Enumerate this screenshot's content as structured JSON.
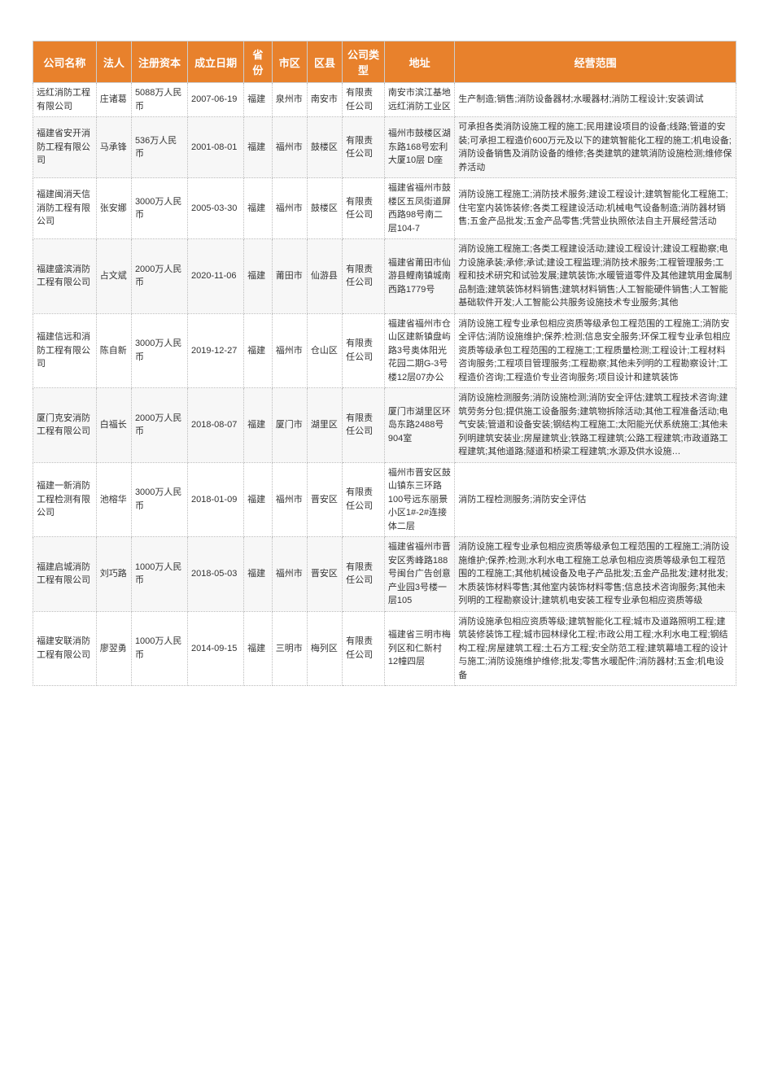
{
  "table": {
    "header_bg": "#e8812c",
    "header_color": "#ffffff",
    "row_even_bg": "#f7f7f7",
    "row_odd_bg": "#ffffff",
    "border_color": "#cccccc",
    "font_family": "Microsoft YaHei",
    "header_fontsize": 13,
    "cell_fontsize": 11,
    "columns": [
      {
        "key": "company_name",
        "label": "公司名称"
      },
      {
        "key": "legal_person",
        "label": "法人"
      },
      {
        "key": "reg_capital",
        "label": "注册资本"
      },
      {
        "key": "est_date",
        "label": "成立日期"
      },
      {
        "key": "province",
        "label": "省份"
      },
      {
        "key": "city",
        "label": "市区"
      },
      {
        "key": "district",
        "label": "区县"
      },
      {
        "key": "company_type",
        "label": "公司类型"
      },
      {
        "key": "address",
        "label": "地址"
      },
      {
        "key": "scope",
        "label": "经营范围"
      }
    ],
    "rows": [
      {
        "company_name": "远红消防工程有限公司",
        "legal_person": "庄诸葛",
        "reg_capital": "5088万人民币",
        "est_date": "2007-06-19",
        "province": "福建",
        "city": "泉州市",
        "district": "南安市",
        "company_type": "有限责任公司",
        "address": "南安市滨江基地远红消防工业区",
        "scope": "生产制造;销售;消防设备器材;水暖器材;消防工程设计;安装调试"
      },
      {
        "company_name": "福建省安开消防工程有限公司",
        "legal_person": "马承锋",
        "reg_capital": "536万人民币",
        "est_date": "2001-08-01",
        "province": "福建",
        "city": "福州市",
        "district": "鼓楼区",
        "company_type": "有限责任公司",
        "address": "福州市鼓楼区湖东路168号宏利大厦10层 D座",
        "scope": "可承担各类消防设施工程的施工;民用建设项目的设备;线路;管道的安装;可承担工程造价600万元及以下的建筑智能化工程的施工;机电设备;消防设备销售及消防设备的维修;各类建筑的建筑消防设施检测;维修保养活动"
      },
      {
        "company_name": "福建闽消天信消防工程有限公司",
        "legal_person": "张安娜",
        "reg_capital": "3000万人民币",
        "est_date": "2005-03-30",
        "province": "福建",
        "city": "福州市",
        "district": "鼓楼区",
        "company_type": "有限责任公司",
        "address": "福建省福州市鼓楼区五凤街道屏西路98号南二层104-7",
        "scope": "消防设施工程施工;消防技术服务;建设工程设计;建筑智能化工程施工;住宅室内装饰装修;各类工程建设活动;机械电气设备制造;消防器材销售;五金产品批发;五金产品零售;凭营业执照依法自主开展经营活动"
      },
      {
        "company_name": "福建盛滨消防工程有限公司",
        "legal_person": "占文斌",
        "reg_capital": "2000万人民币",
        "est_date": "2020-11-06",
        "province": "福建",
        "city": "莆田市",
        "district": "仙游县",
        "company_type": "有限责任公司",
        "address": "福建省莆田市仙游县鲤南镇城南西路1779号",
        "scope": "消防设施工程施工;各类工程建设活动;建设工程设计;建设工程勘察;电力设施承装;承修;承试;建设工程监理;消防技术服务;工程管理服务;工程和技术研究和试验发展;建筑装饰;水暖管道零件及其他建筑用金属制品制造;建筑装饰材料销售;建筑材料销售;人工智能硬件销售;人工智能基础软件开发;人工智能公共服务设施技术专业服务;其他"
      },
      {
        "company_name": "福建信远和消防工程有限公司",
        "legal_person": "陈自新",
        "reg_capital": "3000万人民币",
        "est_date": "2019-12-27",
        "province": "福建",
        "city": "福州市",
        "district": "仓山区",
        "company_type": "有限责任公司",
        "address": "福建省福州市仓山区建新镇盘屿路3号奥体阳光花园二期G-3号楼12层07办公",
        "scope": "消防设施工程专业承包相应资质等级承包工程范围的工程施工;消防安全评估;消防设施维护;保养;检测;信息安全服务;环保工程专业承包相应资质等级承包工程范围的工程施工;工程质量检测;工程设计;工程材料咨询服务;工程项目管理服务;工程勘察;其他未列明的工程勘察设计;工程造价咨询;工程造价专业咨询服务;项目设计和建筑装饰"
      },
      {
        "company_name": "厦门克安消防工程有限公司",
        "legal_person": "白福长",
        "reg_capital": "2000万人民币",
        "est_date": "2018-08-07",
        "province": "福建",
        "city": "厦门市",
        "district": "湖里区",
        "company_type": "有限责任公司",
        "address": "厦门市湖里区环岛东路2488号904室",
        "scope": "消防设施检测服务;消防设施检测;消防安全评估;建筑工程技术咨询;建筑劳务分包;提供施工设备服务;建筑物拆除活动;其他工程准备活动;电气安装;管道和设备安装;钢结构工程施工;太阳能光伏系统施工;其他未列明建筑安装业;房屋建筑业;铁路工程建筑;公路工程建筑;市政道路工程建筑;其他道路;隧道和桥梁工程建筑;水源及供水设施…"
      },
      {
        "company_name": "福建一新消防工程检测有限公司",
        "legal_person": "池榕华",
        "reg_capital": "3000万人民币",
        "est_date": "2018-01-09",
        "province": "福建",
        "city": "福州市",
        "district": "晋安区",
        "company_type": "有限责任公司",
        "address": "福州市晋安区鼓山镇东三环路100号远东丽景小区1#-2#连接体二层",
        "scope": "消防工程检测服务;消防安全评估"
      },
      {
        "company_name": "福建启城消防工程有限公司",
        "legal_person": "刘巧路",
        "reg_capital": "1000万人民币",
        "est_date": "2018-05-03",
        "province": "福建",
        "city": "福州市",
        "district": "晋安区",
        "company_type": "有限责任公司",
        "address": "福建省福州市晋安区秀峰路188号闽台广告创意产业园3号楼一层105",
        "scope": "消防设施工程专业承包相应资质等级承包工程范围的工程施工;消防设施维护;保养;检测;水利水电工程施工总承包相应资质等级承包工程范围的工程施工;其他机械设备及电子产品批发;五金产品批发;建材批发;木质装饰材料零售;其他室内装饰材料零售;信息技术咨询服务;其他未列明的工程勘察设计;建筑机电安装工程专业承包相应资质等级"
      },
      {
        "company_name": "福建安联消防工程有限公司",
        "legal_person": "廖翌勇",
        "reg_capital": "1000万人民币",
        "est_date": "2014-09-15",
        "province": "福建",
        "city": "三明市",
        "district": "梅列区",
        "company_type": "有限责任公司",
        "address": "福建省三明市梅列区和仁新村12幢四层",
        "scope": "消防设施承包相应资质等级;建筑智能化工程;城市及道路照明工程;建筑装修装饰工程;城市园林绿化工程;市政公用工程;水利水电工程;钢结构工程;房屋建筑工程;土石方工程;安全防范工程;建筑幕墙工程的设计与施工;消防设施维护维修;批发;零售水暖配件;消防器材;五金;机电设备"
      }
    ]
  }
}
